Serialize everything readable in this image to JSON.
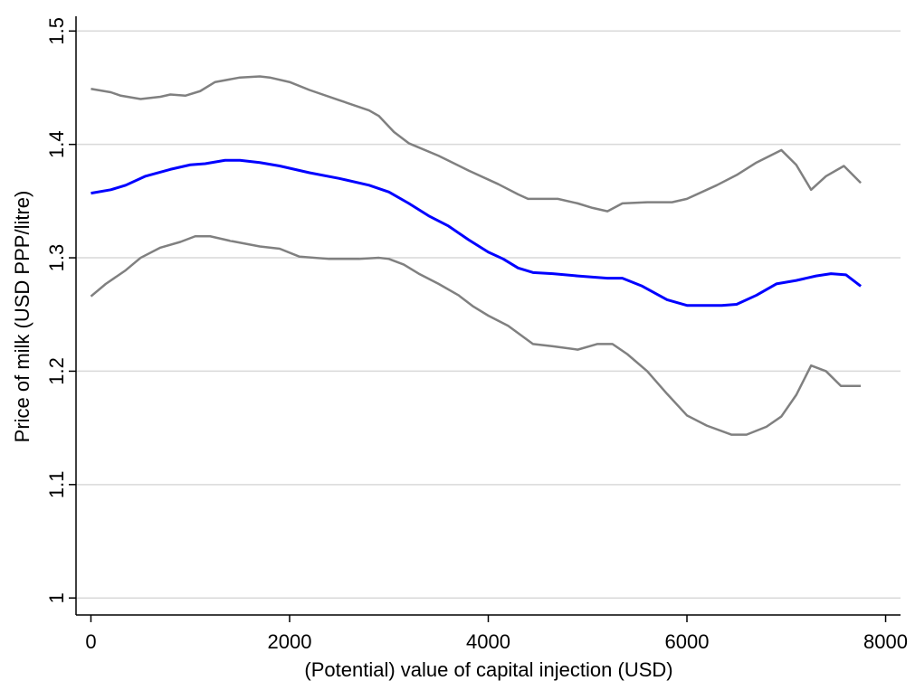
{
  "chart_data": {
    "type": "line",
    "xlabel": "(Potential) value of capital injection (USD)",
    "ylabel": "Price of milk (USD PPP/litre)",
    "xlim": [
      -150,
      8150
    ],
    "ylim": [
      0.985,
      1.513
    ],
    "xticks": [
      0,
      2000,
      4000,
      6000,
      8000
    ],
    "yticks": [
      1,
      1.1,
      1.2,
      1.3,
      1.4,
      1.5
    ],
    "grid": true,
    "series": [
      {
        "color": "#808080",
        "x": [
          0,
          200,
          300,
          500,
          700,
          800,
          950,
          1100,
          1250,
          1500,
          1700,
          1800,
          2000,
          2200,
          2500,
          2800,
          2900,
          3050,
          3200,
          3500,
          3800,
          4100,
          4300,
          4400,
          4700,
          4900,
          5050,
          5200,
          5350,
          5600,
          5850,
          6000,
          6300,
          6500,
          6700,
          6950,
          7100,
          7250,
          7400,
          7580,
          7750
        ],
        "values": [
          1.449,
          1.446,
          1.443,
          1.44,
          1.442,
          1.444,
          1.443,
          1.447,
          1.455,
          1.459,
          1.46,
          1.459,
          1.455,
          1.448,
          1.439,
          1.43,
          1.425,
          1.411,
          1.401,
          1.39,
          1.377,
          1.365,
          1.356,
          1.352,
          1.352,
          1.348,
          1.344,
          1.341,
          1.348,
          1.349,
          1.349,
          1.352,
          1.364,
          1.373,
          1.384,
          1.395,
          1.382,
          1.36,
          1.372,
          1.381,
          1.366
        ]
      },
      {
        "color": "#0000ff",
        "x": [
          0,
          200,
          350,
          550,
          800,
          1000,
          1150,
          1350,
          1500,
          1700,
          1900,
          2200,
          2500,
          2800,
          3000,
          3200,
          3400,
          3600,
          3800,
          4000,
          4150,
          4300,
          4450,
          4650,
          4900,
          5200,
          5350,
          5550,
          5800,
          6000,
          6350,
          6500,
          6700,
          6900,
          7100,
          7300,
          7450,
          7600,
          7750
        ],
        "values": [
          1.357,
          1.36,
          1.364,
          1.372,
          1.378,
          1.382,
          1.383,
          1.386,
          1.386,
          1.384,
          1.381,
          1.375,
          1.37,
          1.364,
          1.358,
          1.348,
          1.337,
          1.328,
          1.316,
          1.305,
          1.299,
          1.291,
          1.287,
          1.286,
          1.284,
          1.282,
          1.282,
          1.275,
          1.263,
          1.258,
          1.258,
          1.259,
          1.267,
          1.277,
          1.28,
          1.284,
          1.286,
          1.285,
          1.275
        ]
      },
      {
        "color": "#808080",
        "x": [
          0,
          150,
          350,
          500,
          700,
          900,
          1050,
          1200,
          1400,
          1700,
          1900,
          2100,
          2400,
          2700,
          2900,
          3000,
          3150,
          3300,
          3500,
          3700,
          3850,
          4000,
          4200,
          4450,
          4650,
          4900,
          5100,
          5250,
          5400,
          5600,
          5800,
          6000,
          6200,
          6450,
          6600,
          6800,
          6950,
          7100,
          7250,
          7400,
          7550,
          7750
        ],
        "values": [
          1.266,
          1.277,
          1.289,
          1.3,
          1.309,
          1.314,
          1.319,
          1.319,
          1.315,
          1.31,
          1.308,
          1.301,
          1.299,
          1.299,
          1.3,
          1.299,
          1.294,
          1.286,
          1.277,
          1.267,
          1.257,
          1.249,
          1.24,
          1.224,
          1.222,
          1.219,
          1.224,
          1.224,
          1.215,
          1.2,
          1.18,
          1.161,
          1.152,
          1.144,
          1.144,
          1.151,
          1.16,
          1.179,
          1.205,
          1.2,
          1.187,
          1.187
        ]
      }
    ]
  }
}
